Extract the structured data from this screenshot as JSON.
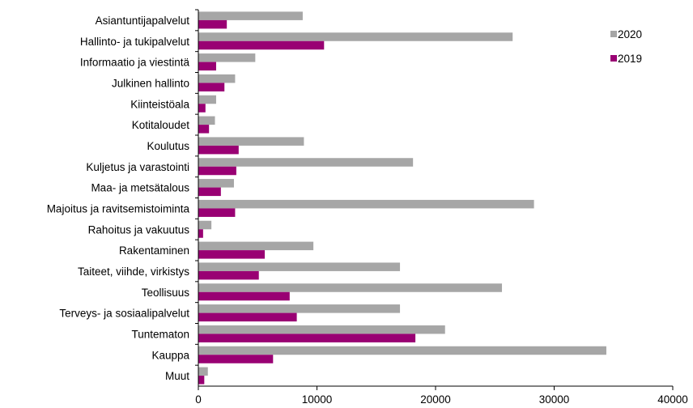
{
  "chart_data": {
    "type": "bar",
    "orientation": "horizontal",
    "categories": [
      "Asiantuntijapalvelut",
      "Hallinto- ja tukipalvelut",
      "Informaatio ja viestintä",
      "Julkinen hallinto",
      "Kiinteistöala",
      "Kotitaloudet",
      "Koulutus",
      "Kuljetus ja varastointi",
      "Maa- ja metsätalous",
      "Majoitus ja ravitsemistoiminta",
      "Rahoitus ja vakuutus",
      "Rakentaminen",
      "Taiteet, viihde, virkistys",
      "Teollisuus",
      "Terveys- ja sosiaalipalvelut",
      "Tuntematon",
      "Kauppa",
      "Muut"
    ],
    "series": [
      {
        "name": "2020",
        "color": "#a6a6a6",
        "values": [
          8800,
          26500,
          4800,
          3100,
          1500,
          1400,
          8900,
          18100,
          3000,
          28300,
          1100,
          9700,
          17000,
          25600,
          17000,
          20800,
          34400,
          800
        ]
      },
      {
        "name": "2019",
        "color": "#990073",
        "values": [
          2400,
          10600,
          1500,
          2200,
          600,
          900,
          3400,
          3200,
          1900,
          3100,
          400,
          5600,
          5100,
          7700,
          8300,
          18300,
          6300,
          500
        ]
      }
    ],
    "xlim": [
      0,
      40000
    ],
    "xticks": [
      "0",
      "10000",
      "20000",
      "30000",
      "40000"
    ],
    "xlabel": "",
    "ylabel": "",
    "title": "",
    "grid": false,
    "legend_position": "top-right"
  }
}
